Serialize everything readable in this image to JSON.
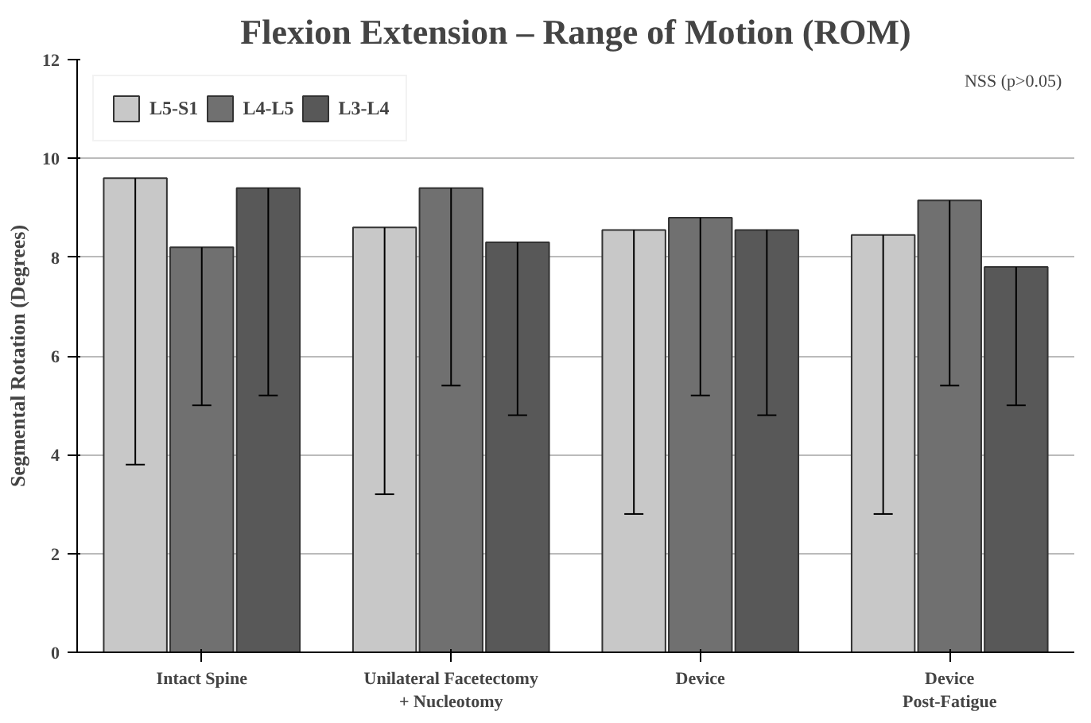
{
  "chart_data": {
    "type": "bar",
    "title": "Flexion Extension – Range of Motion (ROM)",
    "ylabel": "Segmental Rotation (Degrees)",
    "categories": [
      "Intact Spine",
      "Unilateral Facetectomy\n+ Nucleotomy",
      "Device",
      "Device\nPost-Fatigue"
    ],
    "series": [
      {
        "name": "L5-S1",
        "color": "#c8c8c8",
        "values": [
          9.6,
          8.6,
          8.55,
          8.45
        ],
        "errors": [
          [
            3.8,
            9.6
          ],
          [
            3.2,
            8.6
          ],
          [
            2.8,
            8.55
          ],
          [
            2.8,
            8.45
          ]
        ]
      },
      {
        "name": "L4-L5",
        "color": "#707070",
        "values": [
          8.2,
          9.4,
          8.8,
          9.15
        ],
        "errors": [
          [
            5.0,
            8.2
          ],
          [
            5.4,
            9.4
          ],
          [
            5.2,
            8.8
          ],
          [
            5.4,
            9.15
          ]
        ]
      },
      {
        "name": "L3-L4",
        "color": "#585858",
        "values": [
          9.4,
          8.3,
          8.55,
          7.8
        ],
        "errors": [
          [
            5.2,
            9.4
          ],
          [
            4.8,
            8.3
          ],
          [
            4.8,
            8.55
          ],
          [
            5.0,
            7.8
          ]
        ]
      }
    ],
    "ylim": [
      0,
      12
    ],
    "yticks": [
      0,
      2,
      4,
      6,
      8,
      10,
      12
    ],
    "grid": "y",
    "legend": "top left",
    "annotations": [
      "NSS (p>0.05)"
    ]
  }
}
